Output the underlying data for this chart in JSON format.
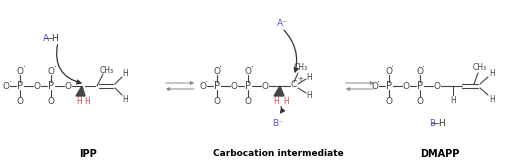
{
  "bg_color": "#ffffff",
  "blue_color": "#5555cc",
  "dark_color": "#333333",
  "mol_color": "#444444",
  "red_h_color": "#cc4444",
  "figsize": [
    5.12,
    1.66
  ],
  "dpi": 100,
  "label_ipp": "IPP",
  "label_carbocation": "Carbocation intermediate",
  "label_dmapp": "DMAPP"
}
